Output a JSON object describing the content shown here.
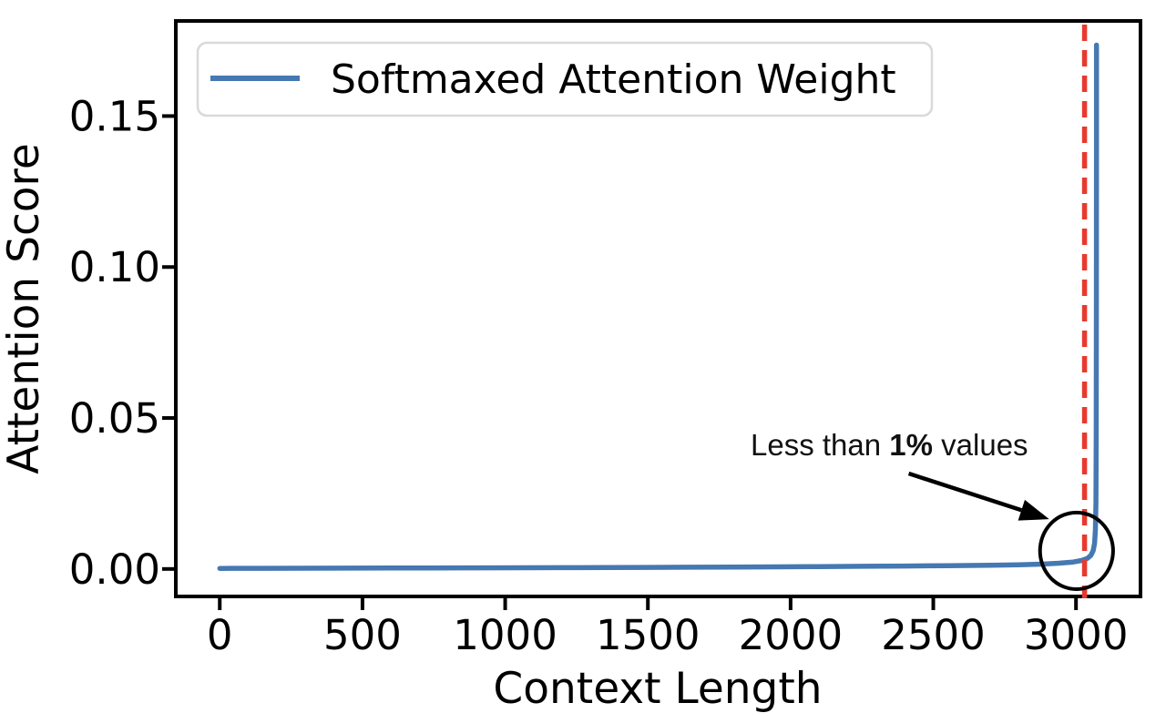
{
  "chart_data": {
    "type": "line",
    "title": "",
    "xlabel": "Context Length",
    "ylabel": "Attention Score",
    "xlim": [
      -154,
      3226
    ],
    "ylim": [
      -0.0091,
      0.1815
    ],
    "xticks": [
      0,
      500,
      1000,
      1500,
      2000,
      2500,
      3000
    ],
    "yticks": [
      0,
      0.05,
      0.1,
      0.15
    ],
    "ytick_labels": [
      "0.00",
      "0.05",
      "0.10",
      "0.15"
    ],
    "grid": false,
    "legend_position": "upper left",
    "colors": {
      "line": "#4678b2",
      "vline": "#e8392e",
      "annotation": "#000000",
      "legend_border": "#d9d9d9",
      "frame": "#000000"
    },
    "series": [
      {
        "name": "Softmaxed Attention Weight",
        "color": "#4678b2",
        "points": [
          [
            0,
            0.0002
          ],
          [
            150,
            0.00022
          ],
          [
            300,
            0.00025
          ],
          [
            450,
            0.00028
          ],
          [
            600,
            0.0003
          ],
          [
            750,
            0.00033
          ],
          [
            900,
            0.00036
          ],
          [
            1050,
            0.0004
          ],
          [
            1200,
            0.00044
          ],
          [
            1350,
            0.00048
          ],
          [
            1500,
            0.00053
          ],
          [
            1650,
            0.00058
          ],
          [
            1800,
            0.00064
          ],
          [
            1950,
            0.0007
          ],
          [
            2100,
            0.00078
          ],
          [
            2250,
            0.00087
          ],
          [
            2400,
            0.00097
          ],
          [
            2550,
            0.0011
          ],
          [
            2700,
            0.00125
          ],
          [
            2800,
            0.0014
          ],
          [
            2880,
            0.0016
          ],
          [
            2940,
            0.0019
          ],
          [
            2990,
            0.0023
          ],
          [
            3020,
            0.0028
          ],
          [
            3040,
            0.0035
          ],
          [
            3052,
            0.0045
          ],
          [
            3060,
            0.006
          ],
          [
            3065,
            0.0085
          ],
          [
            3068,
            0.013
          ],
          [
            3070,
            0.022
          ],
          [
            3071,
            0.045
          ],
          [
            3071.5,
            0.09
          ],
          [
            3071.8,
            0.14
          ],
          [
            3072,
            0.1735
          ]
        ]
      }
    ],
    "peak": {
      "x": 3072,
      "y": 0.173
    },
    "vline": {
      "x": 3030,
      "color": "#e8392e",
      "style": "dashed"
    },
    "annotation": {
      "prefix": "Less than ",
      "bold": "1%",
      "suffix": " values",
      "text_x": 1860,
      "text_y": 0.0376,
      "arrow": {
        "x1": 2414,
        "y1": 0.0316,
        "x2": 2906,
        "y2": 0.0165
      },
      "circle": {
        "cx": 3002,
        "cy": 0.006,
        "rx": 128,
        "ry": 0.0127
      }
    }
  }
}
